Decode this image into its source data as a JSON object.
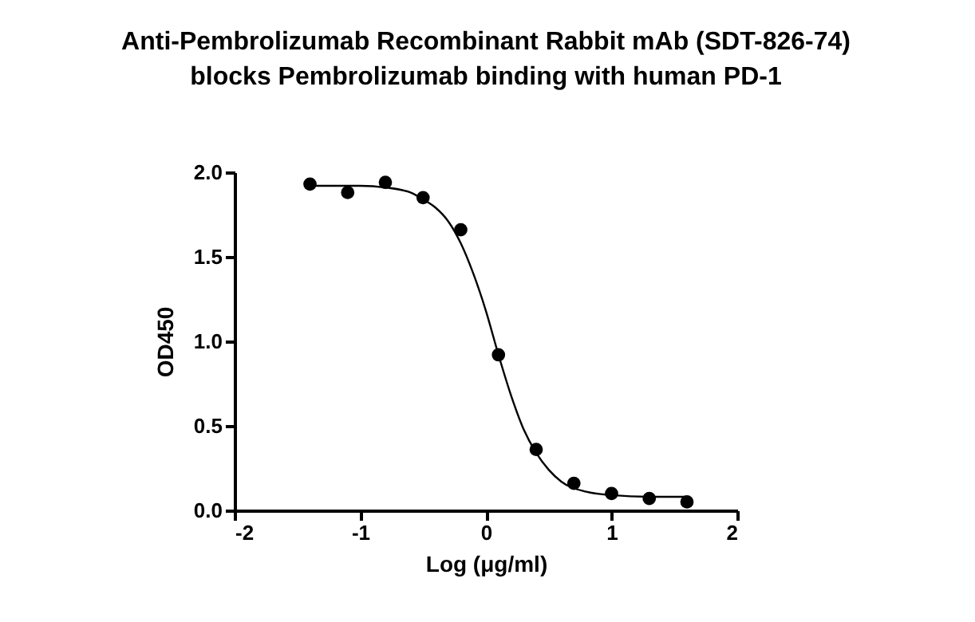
{
  "chart_data": {
    "type": "scatter",
    "title": "Anti-Pembrolizumab Recombinant Rabbit mAb (SDT-826-74)\nblocks Pembrolizumab binding with human PD-1",
    "xlabel": "Log (μg/ml)",
    "ylabel": "OD450",
    "x": [
      -1.4,
      -1.1,
      -0.8,
      -0.5,
      -0.2,
      0.1,
      0.4,
      0.7,
      1.0,
      1.3,
      1.6
    ],
    "series": [
      {
        "color": "#000000",
        "marker": "circle",
        "values": [
          1.93,
          1.88,
          1.94,
          1.85,
          1.66,
          0.92,
          0.36,
          0.16,
          0.1,
          0.07,
          0.05
        ]
      },
      {
        "type": "line",
        "color": "#000000",
        "line_style": "solid",
        "marker": "none",
        "x": [
          -1.4,
          -1.2,
          -1.0,
          -0.8,
          -0.6,
          -0.5,
          -0.4,
          -0.3,
          -0.2,
          -0.1,
          0,
          0.1,
          0.2,
          0.3,
          0.4,
          0.5,
          0.6,
          0.8,
          1.0,
          1.3,
          1.6
        ],
        "values": [
          1.92,
          1.92,
          1.92,
          1.91,
          1.88,
          1.84,
          1.79,
          1.71,
          1.58,
          1.4,
          1.18,
          0.92,
          0.68,
          0.48,
          0.34,
          0.24,
          0.17,
          0.11,
          0.09,
          0.08,
          0.08
        ]
      }
    ],
    "xlim": [
      -2,
      2
    ],
    "xticks": [
      -2,
      -1,
      0,
      1,
      2
    ],
    "ylim": [
      0,
      2.0
    ],
    "yticks": [
      {
        "value": 0,
        "label": "0.0"
      },
      {
        "value": 0.5,
        "label": "0.5"
      },
      {
        "value": 1,
        "label": "1.0"
      },
      {
        "value": 1.5,
        "label": "1.5"
      },
      {
        "value": 2,
        "label": "2.0"
      }
    ],
    "grid": false
  }
}
